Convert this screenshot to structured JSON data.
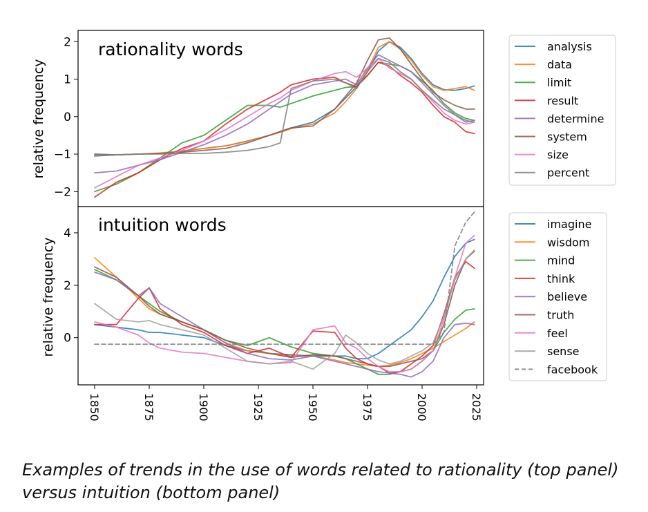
{
  "caption": "Examples of trends in the use of words related to rationality (top panel) versus intuition (bottom panel)",
  "chart_data": [
    {
      "type": "line",
      "title": "rationality words",
      "xlabel": "",
      "ylabel": "relative frequency",
      "xlim": [
        1850,
        2024
      ],
      "ylim": [
        -2.4,
        2.3
      ],
      "yticks": [
        2,
        1,
        0,
        -1,
        -2
      ],
      "ytick_labels": [
        "2",
        "1",
        "0",
        "−1",
        "−2"
      ],
      "legend_position": "outside-right",
      "x": [
        1850,
        1860,
        1870,
        1880,
        1890,
        1900,
        1910,
        1920,
        1930,
        1935,
        1940,
        1950,
        1960,
        1965,
        1970,
        1975,
        1980,
        1985,
        1990,
        1995,
        2000,
        2005,
        2010,
        2015,
        2020,
        2024
      ],
      "series": [
        {
          "name": "analysis",
          "color": "#1f77b4",
          "dashed": false,
          "values": [
            -1.05,
            -1.02,
            -1.0,
            -0.98,
            -0.92,
            -0.85,
            -0.78,
            -0.65,
            -0.5,
            -0.4,
            -0.3,
            -0.15,
            0.2,
            0.5,
            0.8,
            1.2,
            1.75,
            2.0,
            1.85,
            1.55,
            1.15,
            0.85,
            0.72,
            0.7,
            0.75,
            0.82
          ]
        },
        {
          "name": "data",
          "color": "#ff7f0e",
          "dashed": false,
          "values": [
            -1.02,
            -1.02,
            -1.0,
            -0.97,
            -0.92,
            -0.85,
            -0.78,
            -0.66,
            -0.5,
            -0.42,
            -0.32,
            -0.2,
            0.1,
            0.4,
            0.75,
            1.25,
            1.85,
            2.0,
            1.8,
            1.5,
            1.1,
            0.8,
            0.7,
            0.75,
            0.8,
            0.7
          ]
        },
        {
          "name": "limit",
          "color": "#2ca02c",
          "dashed": false,
          "values": [
            -2.0,
            -1.8,
            -1.5,
            -1.1,
            -0.7,
            -0.5,
            -0.1,
            0.3,
            0.3,
            0.25,
            0.35,
            0.55,
            0.7,
            0.78,
            0.8,
            1.1,
            1.45,
            1.4,
            1.35,
            1.2,
            0.95,
            0.7,
            0.35,
            0.1,
            -0.05,
            -0.1
          ]
        },
        {
          "name": "result",
          "color": "#d62728",
          "dashed": false,
          "values": [
            -2.15,
            -1.75,
            -1.5,
            -1.15,
            -0.85,
            -0.65,
            -0.2,
            0.2,
            0.5,
            0.65,
            0.85,
            1.0,
            1.05,
            0.9,
            0.8,
            1.1,
            1.45,
            1.35,
            1.1,
            0.9,
            0.65,
            0.3,
            0.0,
            -0.15,
            -0.4,
            -0.45
          ]
        },
        {
          "name": "determine",
          "color": "#9467bd",
          "dashed": false,
          "values": [
            -1.5,
            -1.45,
            -1.3,
            -1.15,
            -0.95,
            -0.75,
            -0.5,
            -0.2,
            0.2,
            0.4,
            0.6,
            0.85,
            0.95,
            1.0,
            0.85,
            1.3,
            1.65,
            1.5,
            1.35,
            1.2,
            0.9,
            0.6,
            0.3,
            0.05,
            -0.1,
            -0.15
          ]
        },
        {
          "name": "system",
          "color": "#8c564b",
          "dashed": false,
          "values": [
            -1.0,
            -1.02,
            -1.0,
            -0.98,
            -0.95,
            -0.9,
            -0.85,
            -0.7,
            -0.5,
            -0.4,
            -0.3,
            -0.25,
            0.2,
            0.55,
            0.9,
            1.5,
            2.05,
            2.1,
            1.8,
            1.4,
            1.0,
            0.65,
            0.45,
            0.3,
            0.2,
            0.2
          ]
        },
        {
          "name": "size",
          "color": "#e377c2",
          "dashed": false,
          "values": [
            -1.9,
            -1.6,
            -1.3,
            -1.1,
            -0.9,
            -0.65,
            -0.35,
            0.0,
            0.35,
            0.5,
            0.7,
            0.95,
            1.15,
            1.2,
            1.05,
            1.3,
            1.55,
            1.3,
            1.15,
            1.0,
            0.7,
            0.4,
            0.1,
            -0.1,
            -0.2,
            -0.15
          ]
        },
        {
          "name": "percent",
          "color": "#7f7f7f",
          "dashed": false,
          "values": [
            -1.0,
            -1.02,
            -1.0,
            -1.0,
            -0.98,
            -0.98,
            -0.95,
            -0.9,
            -0.8,
            -0.7,
            0.75,
            0.95,
            1.0,
            0.9,
            0.75,
            1.2,
            1.55,
            1.45,
            1.2,
            1.0,
            0.7,
            0.45,
            0.2,
            0.05,
            -0.15,
            -0.1
          ]
        }
      ]
    },
    {
      "type": "line",
      "title": "intuition words",
      "xlabel": "",
      "ylabel": "relative frequency",
      "xlim": [
        1850,
        2024
      ],
      "ylim": [
        -1.8,
        5.0
      ],
      "yticks": [
        4,
        2,
        0
      ],
      "ytick_labels": [
        "4",
        "2",
        "0"
      ],
      "xticks": [
        1850,
        1875,
        1900,
        1925,
        1950,
        1975,
        2000,
        2025
      ],
      "xtick_labels": [
        "1850",
        "1875",
        "1900",
        "1925",
        "1950",
        "1975",
        "2000",
        "2025"
      ],
      "legend_position": "outside-right",
      "x": [
        1850,
        1860,
        1870,
        1875,
        1880,
        1890,
        1900,
        1910,
        1920,
        1930,
        1940,
        1950,
        1960,
        1965,
        1970,
        1975,
        1980,
        1985,
        1990,
        1995,
        2000,
        2005,
        2010,
        2015,
        2020,
        2024
      ],
      "series": [
        {
          "name": "imagine",
          "color": "#1f77b4",
          "dashed": false,
          "values": [
            0.5,
            0.4,
            0.3,
            0.2,
            0.2,
            0.1,
            0.0,
            -0.3,
            -0.5,
            -0.6,
            -0.65,
            -0.7,
            -0.7,
            -0.7,
            -0.8,
            -0.8,
            -0.6,
            -0.3,
            0.0,
            0.3,
            0.8,
            1.4,
            2.3,
            3.1,
            3.6,
            3.75
          ]
        },
        {
          "name": "wisdom",
          "color": "#ff7f0e",
          "dashed": false,
          "values": [
            3.05,
            2.3,
            1.5,
            1.1,
            0.9,
            0.6,
            0.3,
            -0.2,
            -0.5,
            -0.6,
            -0.7,
            -0.7,
            -0.85,
            -0.95,
            -1.0,
            -1.05,
            -1.1,
            -1.05,
            -0.95,
            -0.8,
            -0.6,
            -0.4,
            -0.15,
            0.1,
            0.35,
            0.6
          ]
        },
        {
          "name": "mind",
          "color": "#2ca02c",
          "dashed": false,
          "values": [
            2.6,
            2.2,
            1.6,
            1.3,
            1.0,
            0.6,
            0.3,
            -0.1,
            -0.3,
            0.0,
            -0.35,
            -0.6,
            -0.7,
            -0.8,
            -1.0,
            -1.2,
            -1.4,
            -1.4,
            -1.3,
            -1.2,
            -0.9,
            -0.5,
            0.2,
            0.7,
            1.05,
            1.1
          ]
        },
        {
          "name": "think",
          "color": "#d62728",
          "dashed": false,
          "values": [
            0.5,
            0.5,
            1.5,
            1.9,
            1.1,
            0.5,
            0.2,
            -0.3,
            -0.6,
            -0.4,
            -0.75,
            0.25,
            0.2,
            -0.4,
            -0.8,
            -1.0,
            -1.1,
            -1.35,
            -1.3,
            -1.0,
            -0.7,
            -0.3,
            0.9,
            2.3,
            2.9,
            2.65
          ]
        },
        {
          "name": "believe",
          "color": "#9467bd",
          "dashed": false,
          "values": [
            2.5,
            2.2,
            1.6,
            1.9,
            1.3,
            0.8,
            0.3,
            -0.2,
            -0.6,
            -0.8,
            -0.85,
            -0.7,
            -0.9,
            -1.0,
            -1.1,
            -1.2,
            -1.3,
            -1.35,
            -1.4,
            -1.5,
            -1.3,
            -0.9,
            0.0,
            0.5,
            0.55,
            0.5
          ]
        },
        {
          "name": "truth",
          "color": "#8c564b",
          "dashed": false,
          "values": [
            2.7,
            2.3,
            1.6,
            1.2,
            0.9,
            0.6,
            0.3,
            -0.1,
            -0.4,
            -0.6,
            -0.75,
            -0.65,
            -0.7,
            -0.8,
            -0.9,
            -1.0,
            -1.1,
            -1.1,
            -1.0,
            -0.9,
            -0.8,
            -0.5,
            0.5,
            2.0,
            3.0,
            3.3
          ]
        },
        {
          "name": "feel",
          "color": "#e377c2",
          "dashed": false,
          "values": [
            0.6,
            0.4,
            0.1,
            -0.2,
            -0.4,
            -0.55,
            -0.6,
            -0.75,
            -0.9,
            -1.0,
            -0.95,
            0.3,
            0.45,
            -0.2,
            -0.4,
            -0.8,
            -1.1,
            -1.3,
            -1.3,
            -1.2,
            -0.9,
            -0.5,
            0.7,
            2.3,
            3.6,
            3.9
          ]
        },
        {
          "name": "sense",
          "color": "#a0a0a0",
          "dashed": false,
          "values": [
            1.3,
            0.7,
            0.6,
            0.65,
            0.5,
            0.3,
            0.1,
            -0.4,
            -0.9,
            -1.0,
            -0.9,
            -1.2,
            -0.6,
            0.1,
            -0.2,
            -0.6,
            -0.85,
            -1.0,
            -0.9,
            -0.7,
            -0.5,
            -0.2,
            0.8,
            2.2,
            3.0,
            3.35
          ]
        },
        {
          "name": "facebook",
          "color": "#7f7f7f",
          "dashed": true,
          "values": [
            -0.25,
            -0.25,
            -0.25,
            -0.25,
            -0.25,
            -0.25,
            -0.25,
            -0.25,
            -0.25,
            -0.25,
            -0.25,
            -0.25,
            -0.25,
            -0.25,
            -0.25,
            -0.25,
            -0.25,
            -0.25,
            -0.25,
            -0.25,
            -0.25,
            -0.25,
            0.2,
            3.5,
            4.4,
            4.8
          ]
        }
      ]
    }
  ]
}
